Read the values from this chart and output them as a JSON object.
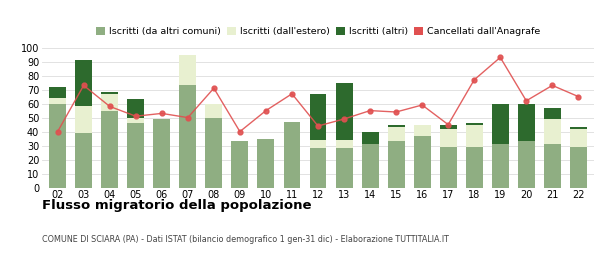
{
  "years": [
    "02",
    "03",
    "04",
    "05",
    "06",
    "07",
    "08",
    "09",
    "10",
    "11",
    "12",
    "13",
    "14",
    "15",
    "16",
    "17",
    "18",
    "19",
    "20",
    "21",
    "22"
  ],
  "iscritti_altri_comuni": [
    60,
    39,
    55,
    46,
    49,
    73,
    50,
    33,
    35,
    47,
    28,
    28,
    31,
    33,
    37,
    29,
    29,
    31,
    33,
    31,
    29
  ],
  "iscritti_estero": [
    4,
    19,
    12,
    4,
    0,
    22,
    10,
    0,
    0,
    0,
    6,
    6,
    0,
    10,
    8,
    13,
    16,
    0,
    0,
    18,
    13
  ],
  "iscritti_altri": [
    8,
    33,
    1,
    13,
    0,
    0,
    0,
    0,
    0,
    0,
    33,
    41,
    9,
    2,
    0,
    3,
    1,
    29,
    27,
    8,
    1
  ],
  "cancellati": [
    40,
    73,
    58,
    51,
    53,
    50,
    71,
    40,
    55,
    67,
    44,
    49,
    55,
    54,
    59,
    45,
    77,
    93,
    62,
    73,
    65
  ],
  "color_altri_comuni": "#8fae82",
  "color_estero": "#e8f0d0",
  "color_altri": "#2d6a2d",
  "color_cancellati": "#e05050",
  "title": "Flusso migratorio della popolazione",
  "subtitle": "COMUNE DI SCIARA (PA) - Dati ISTAT (bilancio demografico 1 gen-31 dic) - Elaborazione TUTTITALIA.IT",
  "legend_labels": [
    "Iscritti (da altri comuni)",
    "Iscritti (dall'estero)",
    "Iscritti (altri)",
    "Cancellati dall'Anagrafe"
  ],
  "ylim": [
    0,
    100
  ],
  "yticks": [
    0,
    10,
    20,
    30,
    40,
    50,
    60,
    70,
    80,
    90,
    100
  ],
  "background_color": "#ffffff",
  "grid_color": "#dddddd",
  "figsize": [
    6.0,
    2.8
  ],
  "dpi": 100
}
